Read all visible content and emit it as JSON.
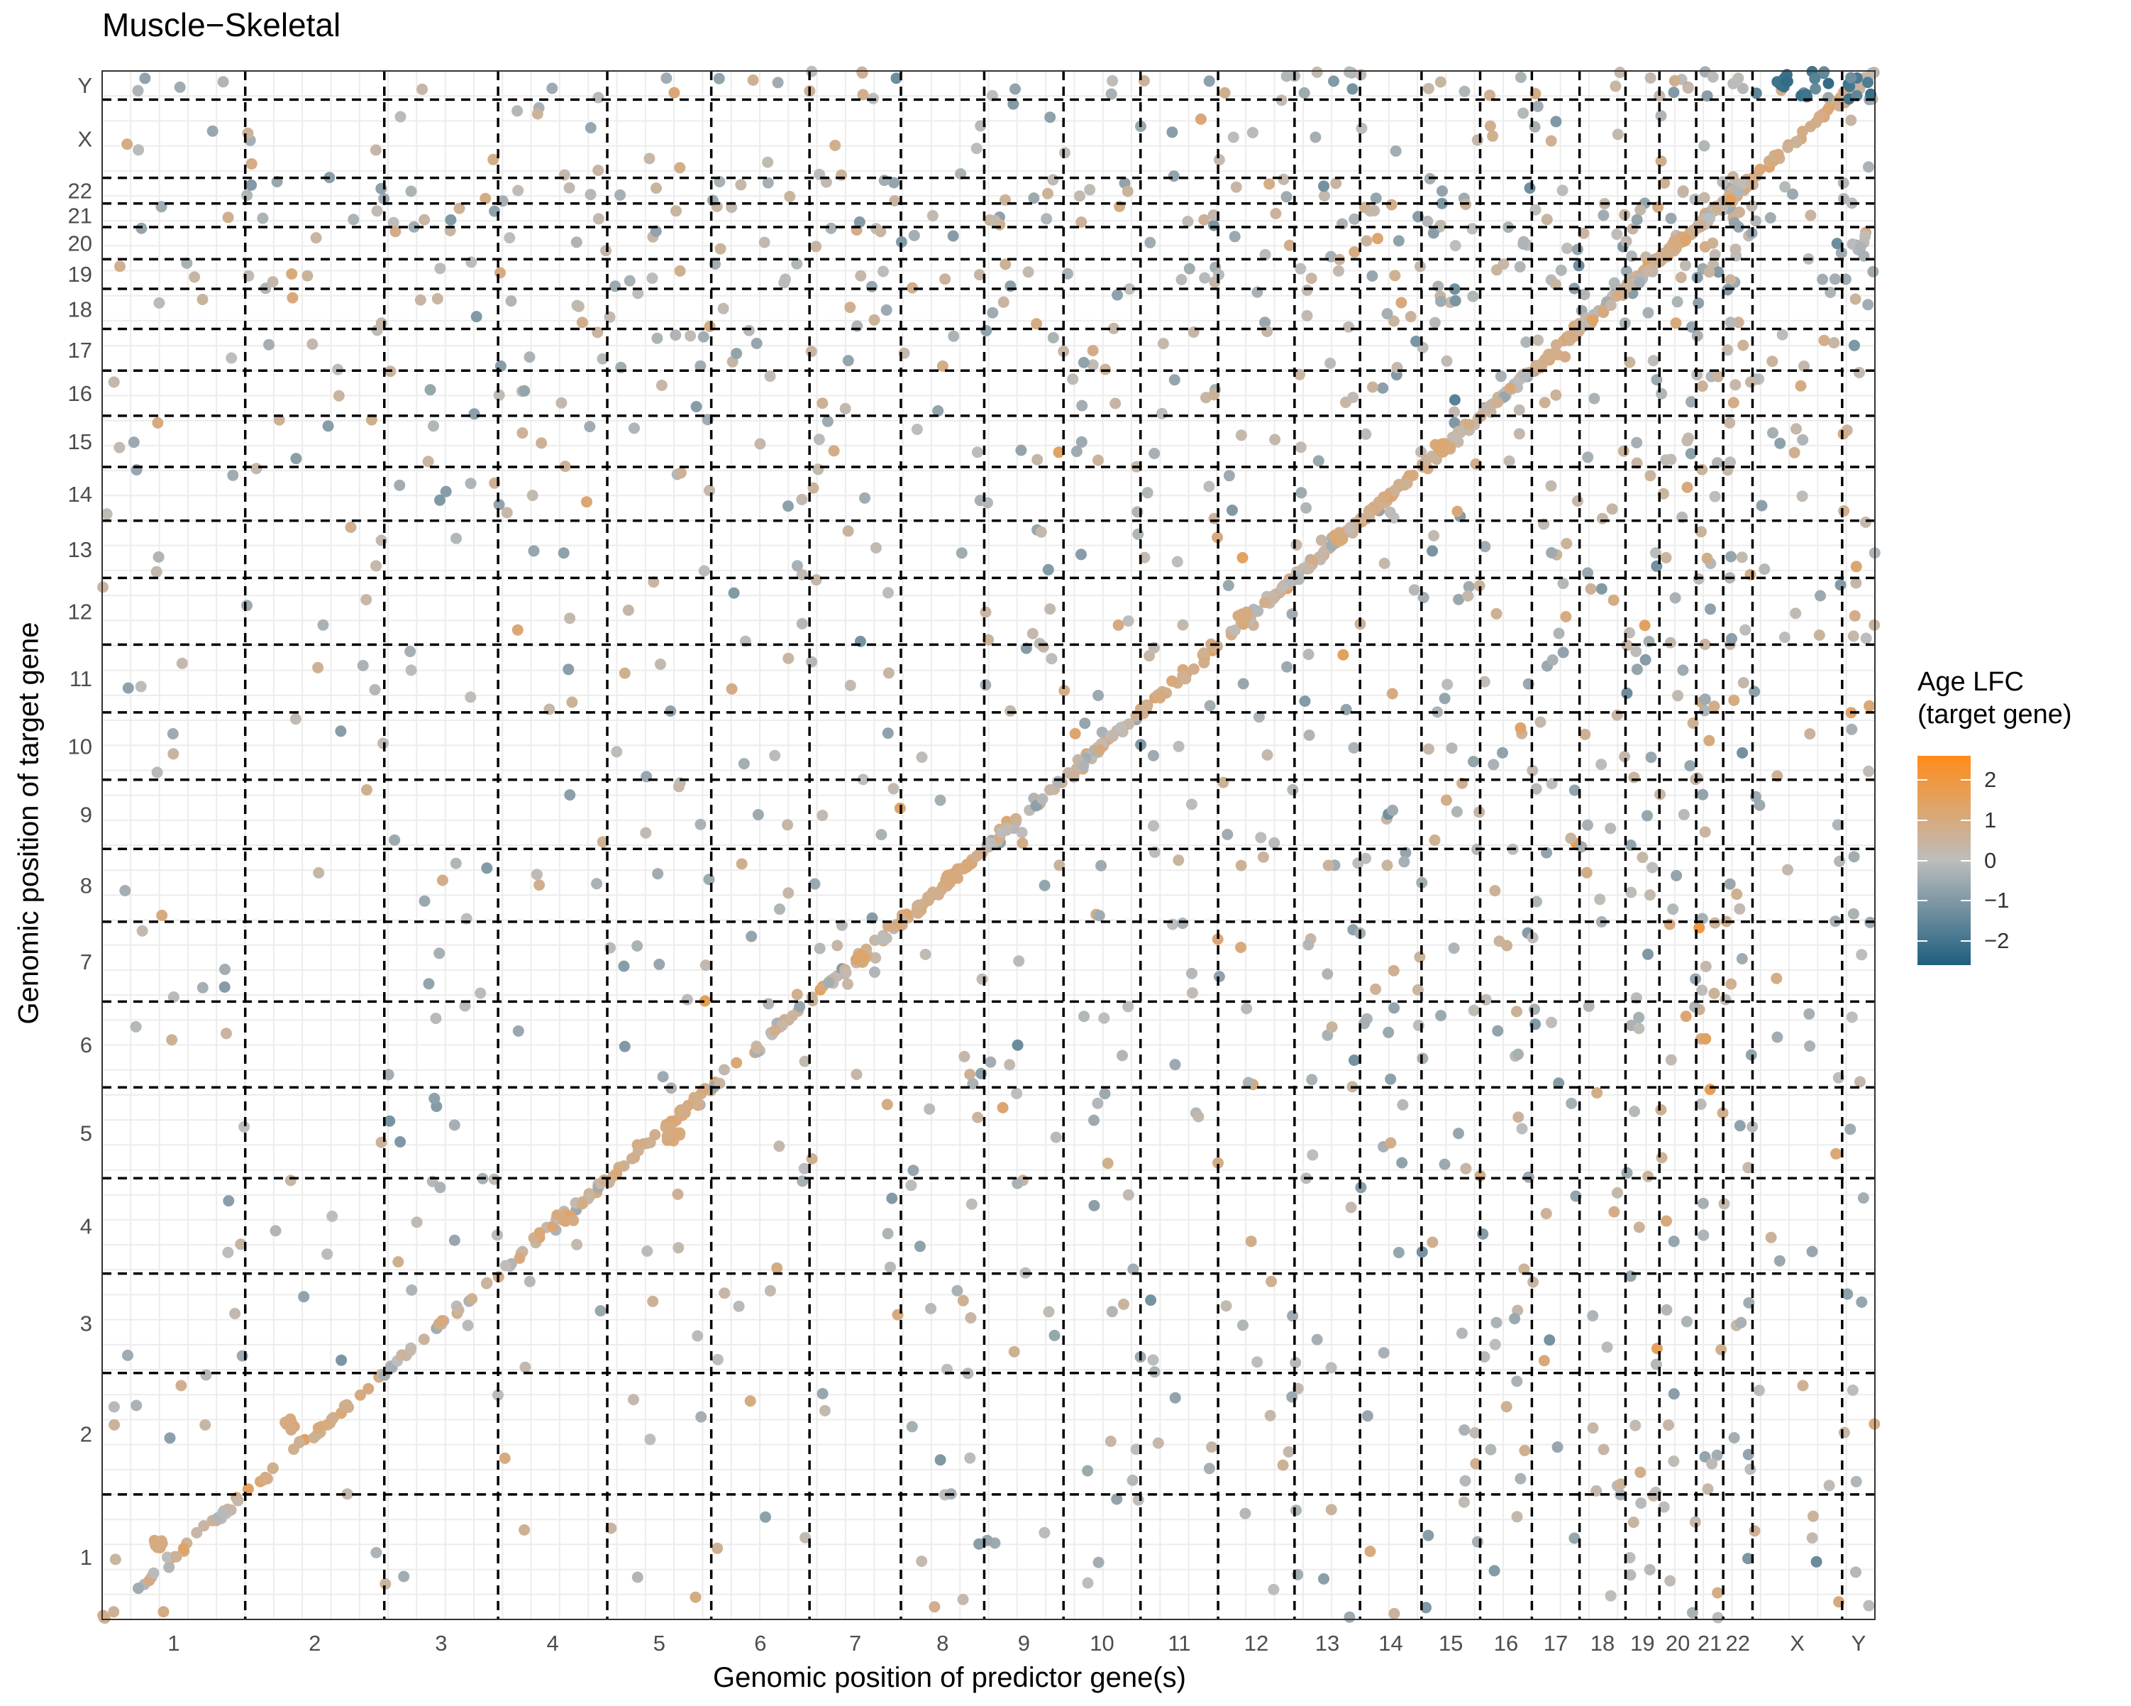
{
  "chart_data": {
    "type": "scatter",
    "title": "Muscle−Skeletal",
    "xlabel": "Genomic position of predictor gene(s)",
    "ylabel": "Genomic position of target gene",
    "chromosomes": [
      "1",
      "2",
      "3",
      "4",
      "5",
      "6",
      "7",
      "8",
      "9",
      "10",
      "11",
      "12",
      "13",
      "14",
      "15",
      "16",
      "17",
      "18",
      "19",
      "20",
      "21",
      "22",
      "X",
      "Y"
    ],
    "x_tick_labels": [
      "1",
      "2",
      "3",
      "4",
      "5",
      "6",
      "7",
      "8",
      "9",
      "10",
      "11",
      "12",
      "13",
      "14",
      "15",
      "16",
      "17",
      "18",
      "19",
      "20",
      "21",
      "22",
      "X",
      "Y"
    ],
    "y_tick_labels": [
      "1",
      "2",
      "3",
      "4",
      "5",
      "6",
      "7",
      "8",
      "9",
      "10",
      "11",
      "12",
      "13",
      "14",
      "15",
      "16",
      "17",
      "18",
      "19",
      "20",
      "21",
      "22",
      "X",
      "Y"
    ],
    "chromosome_lengths_mb": [
      249,
      242,
      198,
      190,
      181,
      171,
      159,
      145,
      138,
      134,
      135,
      133,
      114,
      107,
      102,
      90,
      83,
      80,
      59,
      64,
      47,
      51,
      156,
      57
    ],
    "axis_range": [
      0,
      3100
    ],
    "grid": true,
    "chromosome_boundaries_dashed": true,
    "color_scale": {
      "title_lines": [
        "Age LFC",
        "(target gene)"
      ],
      "tick_labels": [
        "2",
        "1",
        "0",
        "−1",
        "−2"
      ],
      "tick_values": [
        2,
        1,
        0,
        -1,
        -2
      ],
      "range": [
        -2.6,
        2.6
      ],
      "low_color": "#1e5f7f",
      "mid_color": "#bdbdbd",
      "high_color": "#ff8c1a",
      "legend_position": "right"
    },
    "series_clusters": [
      {
        "description": "diagonal same-chromosome concentration",
        "pattern": "diagonal"
      }
    ],
    "notable_point_groups": [
      {
        "x_chr": "1",
        "y_chr": "1",
        "lfc": 1.0
      },
      {
        "x_chr": "2",
        "y_chr": "2",
        "lfc": 1.0
      },
      {
        "x_chr": "4",
        "y_chr": "4",
        "lfc": 1.1
      },
      {
        "x_chr": "5",
        "y_chr": "5",
        "lfc": 1.1
      },
      {
        "x_chr": "7",
        "y_chr": "7",
        "lfc": 1.2
      },
      {
        "x_chr": "8",
        "y_chr": "8",
        "lfc": 1.0
      },
      {
        "x_chr": "12",
        "y_chr": "12",
        "lfc": 0.9
      },
      {
        "x_chr": "13",
        "y_chr": "13",
        "lfc": 1.0
      },
      {
        "x_chr": "15",
        "y_chr": "15",
        "lfc": 1.1
      },
      {
        "x_chr": "X",
        "y_chr": "Y",
        "lfc": -2.0
      }
    ]
  }
}
